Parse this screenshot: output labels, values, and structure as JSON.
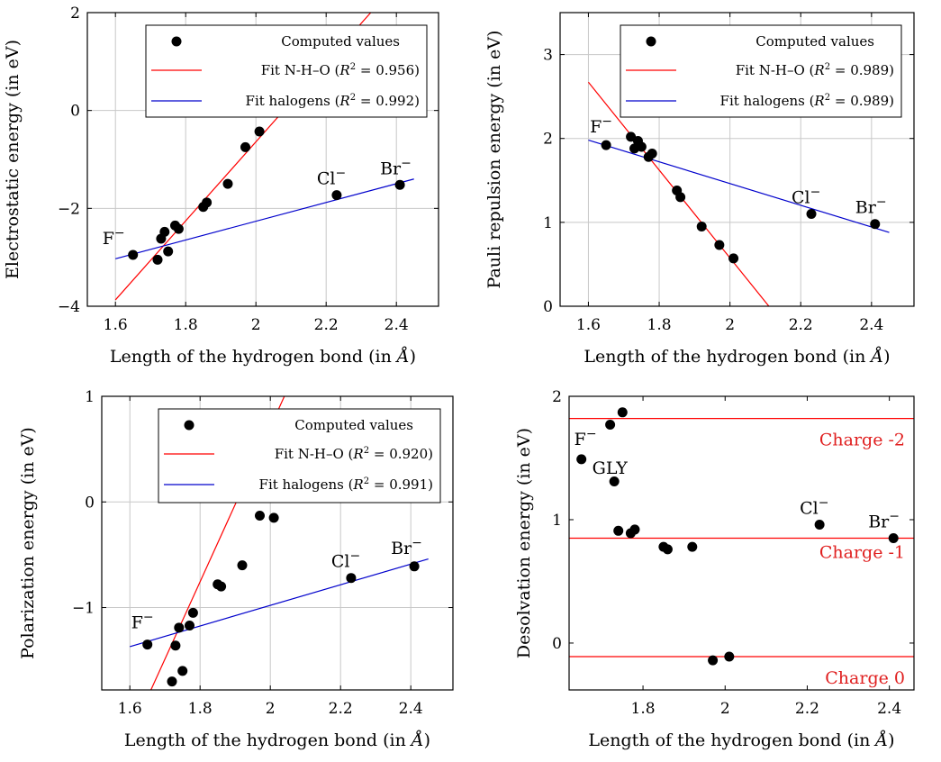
{
  "chart_data": [
    {
      "type": "scatter",
      "xlabel": "Length of the hydrogen bond (in Å)",
      "ylabel": "Electrostatic energy (in eV)",
      "xlim": [
        1.52,
        2.52
      ],
      "ylim": [
        -4,
        2
      ],
      "xticks": [
        {
          "v": 1.6,
          "label": "1.6"
        },
        {
          "v": 1.8,
          "label": "1.8"
        },
        {
          "v": 2.0,
          "label": "2"
        },
        {
          "v": 2.2,
          "label": "2.2"
        },
        {
          "v": 2.4,
          "label": "2.4"
        }
      ],
      "yticks": [
        {
          "v": -4,
          "label": "−4"
        },
        {
          "v": -2,
          "label": "−2"
        },
        {
          "v": 0,
          "label": "0"
        },
        {
          "v": 2,
          "label": "2"
        }
      ],
      "grid": true,
      "points": [
        {
          "x": 1.65,
          "y": -2.95
        },
        {
          "x": 1.72,
          "y": -3.05
        },
        {
          "x": 1.73,
          "y": -2.62
        },
        {
          "x": 1.74,
          "y": -2.48
        },
        {
          "x": 1.75,
          "y": -2.88
        },
        {
          "x": 1.77,
          "y": -2.35
        },
        {
          "x": 1.78,
          "y": -2.42
        },
        {
          "x": 1.85,
          "y": -1.97
        },
        {
          "x": 1.86,
          "y": -1.88
        },
        {
          "x": 1.92,
          "y": -1.5
        },
        {
          "x": 1.97,
          "y": -0.75
        },
        {
          "x": 2.01,
          "y": -0.43
        },
        {
          "x": 2.23,
          "y": -1.73
        },
        {
          "x": 2.41,
          "y": -1.52
        }
      ],
      "lines": [
        {
          "name": "Fit N-H–O",
          "r2": "0.956",
          "color": "#ff0000",
          "x": [
            1.6,
            2.4
          ],
          "y": [
            -3.87,
            2.59
          ]
        },
        {
          "name": "Fit halogens",
          "r2": "0.992",
          "color": "#0000cc",
          "x": [
            1.6,
            2.45
          ],
          "y": [
            -3.03,
            -1.4
          ]
        }
      ],
      "legend": {
        "position": "top-right",
        "entries": [
          "Computed values",
          "Fit N-H–O",
          "Fit halogens"
        ]
      },
      "annotations": [
        {
          "text": "F",
          "x": 1.65,
          "y": -2.95,
          "dx": -34,
          "dy": -12
        },
        {
          "text": "Cl",
          "x": 2.23,
          "y": -1.73,
          "dx": -22,
          "dy": -12
        },
        {
          "text": "Br",
          "x": 2.41,
          "y": -1.52,
          "dx": -22,
          "dy": -12
        }
      ]
    },
    {
      "type": "scatter",
      "xlabel": "Length of the hydrogen bond (in Å)",
      "ylabel": "Pauli repulsion energy (in eV)",
      "xlim": [
        1.52,
        2.52
      ],
      "ylim": [
        0,
        3.5
      ],
      "xticks": [
        {
          "v": 1.6,
          "label": "1.6"
        },
        {
          "v": 1.8,
          "label": "1.8"
        },
        {
          "v": 2.0,
          "label": "2"
        },
        {
          "v": 2.2,
          "label": "2.2"
        },
        {
          "v": 2.4,
          "label": "2.4"
        }
      ],
      "yticks": [
        {
          "v": 0,
          "label": "0"
        },
        {
          "v": 1,
          "label": "1"
        },
        {
          "v": 2,
          "label": "2"
        },
        {
          "v": 3,
          "label": "3"
        }
      ],
      "grid": true,
      "points": [
        {
          "x": 1.65,
          "y": 1.92
        },
        {
          "x": 1.72,
          "y": 2.02
        },
        {
          "x": 1.73,
          "y": 1.88
        },
        {
          "x": 1.74,
          "y": 1.97
        },
        {
          "x": 1.75,
          "y": 1.9
        },
        {
          "x": 1.77,
          "y": 1.78
        },
        {
          "x": 1.78,
          "y": 1.82
        },
        {
          "x": 1.85,
          "y": 1.38
        },
        {
          "x": 1.86,
          "y": 1.3
        },
        {
          "x": 1.92,
          "y": 0.95
        },
        {
          "x": 1.97,
          "y": 0.73
        },
        {
          "x": 2.01,
          "y": 0.57
        },
        {
          "x": 2.23,
          "y": 1.1
        },
        {
          "x": 2.41,
          "y": 0.98
        }
      ],
      "lines": [
        {
          "name": "Fit N-H–O",
          "r2": "0.989",
          "color": "#ff0000",
          "x": [
            1.6,
            2.11
          ],
          "y": [
            2.67,
            0.0
          ]
        },
        {
          "name": "Fit halogens",
          "r2": "0.989",
          "color": "#0000cc",
          "x": [
            1.6,
            2.45
          ],
          "y": [
            1.98,
            0.88
          ]
        }
      ],
      "legend": {
        "position": "top-right",
        "entries": [
          "Computed values",
          "Fit N-H–O",
          "Fit halogens"
        ]
      },
      "annotations": [
        {
          "text": "F",
          "x": 1.65,
          "y": 1.92,
          "dx": -18,
          "dy": -14
        },
        {
          "text": "Cl",
          "x": 2.23,
          "y": 1.1,
          "dx": -22,
          "dy": -12
        },
        {
          "text": "Br",
          "x": 2.41,
          "y": 0.98,
          "dx": -22,
          "dy": -12
        }
      ]
    },
    {
      "type": "scatter",
      "xlabel": "Length of the hydrogen bond (in Å)",
      "ylabel": "Polarization energy (in eV)",
      "xlim": [
        1.52,
        2.52
      ],
      "ylim": [
        -1.78,
        1
      ],
      "xticks": [
        {
          "v": 1.6,
          "label": "1.6"
        },
        {
          "v": 1.8,
          "label": "1.8"
        },
        {
          "v": 2.0,
          "label": "2"
        },
        {
          "v": 2.2,
          "label": "2.2"
        },
        {
          "v": 2.4,
          "label": "2.4"
        }
      ],
      "yticks": [
        {
          "v": -1,
          "label": "−1"
        },
        {
          "v": 0,
          "label": "0"
        },
        {
          "v": 1,
          "label": "1"
        }
      ],
      "grid": true,
      "points": [
        {
          "x": 1.65,
          "y": -1.35
        },
        {
          "x": 1.72,
          "y": -1.7
        },
        {
          "x": 1.73,
          "y": -1.36
        },
        {
          "x": 1.74,
          "y": -1.19
        },
        {
          "x": 1.75,
          "y": -1.6
        },
        {
          "x": 1.77,
          "y": -1.17
        },
        {
          "x": 1.78,
          "y": -1.05
        },
        {
          "x": 1.85,
          "y": -0.78
        },
        {
          "x": 1.86,
          "y": -0.8
        },
        {
          "x": 1.92,
          "y": -0.6
        },
        {
          "x": 1.97,
          "y": -0.13
        },
        {
          "x": 2.01,
          "y": -0.15
        },
        {
          "x": 2.23,
          "y": -0.72
        },
        {
          "x": 2.41,
          "y": -0.61
        }
      ],
      "lines": [
        {
          "name": "Fit N-H–O",
          "r2": "0.920",
          "color": "#ff0000",
          "x": [
            1.66,
            2.04
          ],
          "y": [
            -1.78,
            1.0
          ]
        },
        {
          "name": "Fit halogens",
          "r2": "0.991",
          "color": "#0000cc",
          "x": [
            1.6,
            2.45
          ],
          "y": [
            -1.37,
            -0.54
          ]
        }
      ],
      "legend": {
        "position": "top-right",
        "entries": [
          "Computed values",
          "Fit N-H–O",
          "Fit halogens"
        ]
      },
      "annotations": [
        {
          "text": "F",
          "x": 1.65,
          "y": -1.35,
          "dx": -18,
          "dy": -18
        },
        {
          "text": "Cl",
          "x": 2.23,
          "y": -0.72,
          "dx": -22,
          "dy": -12
        },
        {
          "text": "Br",
          "x": 2.41,
          "y": -0.61,
          "dx": -26,
          "dy": -14
        }
      ]
    },
    {
      "type": "scatter",
      "xlabel": "Length of the hydrogen bond (in Å)",
      "ylabel": "Desolvation energy (in eV)",
      "xlim": [
        1.62,
        2.46
      ],
      "ylim": [
        -0.38,
        2
      ],
      "xticks": [
        {
          "v": 1.6,
          "label": "1.6"
        },
        {
          "v": 1.8,
          "label": "1.8"
        },
        {
          "v": 2.0,
          "label": "2"
        },
        {
          "v": 2.2,
          "label": "2.2"
        },
        {
          "v": 2.4,
          "label": "2.4"
        }
      ],
      "yticks": [
        {
          "v": 0,
          "label": "0"
        },
        {
          "v": 1,
          "label": "1"
        },
        {
          "v": 2,
          "label": "2"
        }
      ],
      "grid": false,
      "points": [
        {
          "x": 1.65,
          "y": 1.49
        },
        {
          "x": 1.72,
          "y": 1.77
        },
        {
          "x": 1.73,
          "y": 1.31
        },
        {
          "x": 1.74,
          "y": 0.91
        },
        {
          "x": 1.75,
          "y": 1.87
        },
        {
          "x": 1.77,
          "y": 0.89
        },
        {
          "x": 1.78,
          "y": 0.92
        },
        {
          "x": 1.85,
          "y": 0.78
        },
        {
          "x": 1.86,
          "y": 0.76
        },
        {
          "x": 1.92,
          "y": 0.78
        },
        {
          "x": 1.97,
          "y": -0.14
        },
        {
          "x": 2.01,
          "y": -0.11
        },
        {
          "x": 2.23,
          "y": 0.96
        },
        {
          "x": 2.41,
          "y": 0.85
        }
      ],
      "hlines": [
        {
          "y": 1.82,
          "label": "Charge -2",
          "color": "#ff0000"
        },
        {
          "y": 0.85,
          "label": "Charge -1",
          "color": "#ff0000"
        },
        {
          "y": -0.11,
          "label": "Charge 0",
          "color": "#ff0000"
        }
      ],
      "annotations": [
        {
          "text": "F",
          "x": 1.65,
          "y": 1.49,
          "dx": -8,
          "dy": -16
        },
        {
          "text": "GLY",
          "x": 1.65,
          "y": 1.49,
          "dx": 12,
          "dy": 16
        },
        {
          "text": "Cl",
          "x": 2.23,
          "y": 0.96,
          "dx": -22,
          "dy": -12
        },
        {
          "text": "Br",
          "x": 2.41,
          "y": 0.85,
          "dx": -28,
          "dy": -12
        }
      ]
    }
  ]
}
